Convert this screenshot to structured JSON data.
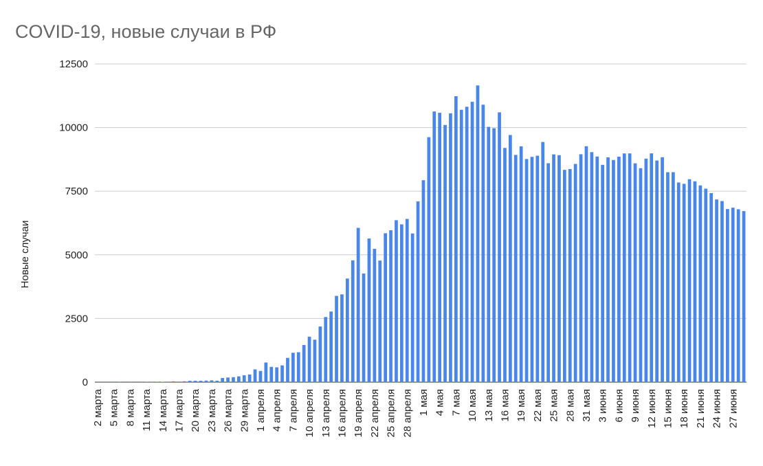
{
  "chart_data": {
    "type": "bar",
    "title": "COVID-19, новые случаи в РФ",
    "ylabel": "Новые случаи",
    "categories": [
      "2 марта",
      null,
      null,
      "5 марта",
      null,
      null,
      "8 марта",
      null,
      null,
      "11 марта",
      null,
      null,
      "14 марта",
      null,
      null,
      "17 марта",
      null,
      null,
      "20 марта",
      null,
      null,
      "23 марта",
      null,
      null,
      "26 марта",
      null,
      null,
      "29 марта",
      null,
      null,
      "1 апреля",
      null,
      null,
      "4 апреля",
      null,
      null,
      "7 апреля",
      null,
      null,
      "10 апреля",
      null,
      null,
      "13 апреля",
      null,
      null,
      "16 апреля",
      null,
      null,
      "19 апреля",
      null,
      null,
      "22 апреля",
      null,
      null,
      "25 апреля",
      null,
      null,
      "28 апреля",
      null,
      null,
      "1 мая",
      null,
      null,
      "4 мая",
      null,
      null,
      "7 мая",
      null,
      null,
      "10 мая",
      null,
      null,
      "13 мая",
      null,
      null,
      "16 мая",
      null,
      null,
      "19 мая",
      null,
      null,
      "22 мая",
      null,
      null,
      "25 мая",
      null,
      null,
      "28 мая",
      null,
      null,
      "31 мая",
      null,
      null,
      "3 июня",
      null,
      null,
      "6 июня",
      null,
      null,
      "9 июня",
      null,
      null,
      "12 июня",
      null,
      null,
      "15 июня",
      null,
      null,
      "18 июня",
      null,
      null,
      "21 июня",
      null,
      null,
      "24 июня",
      null,
      null,
      "27 июня",
      null,
      null
    ],
    "values": [
      1,
      0,
      0,
      1,
      6,
      0,
      3,
      0,
      3,
      8,
      6,
      17,
      14,
      4,
      30,
      21,
      33,
      52,
      54,
      53,
      61,
      71,
      57,
      163,
      182,
      196,
      228,
      270,
      302,
      501,
      440,
      771,
      601,
      582,
      658,
      954,
      1154,
      1175,
      1459,
      1786,
      1667,
      2186,
      2558,
      2774,
      3388,
      3448,
      4070,
      4785,
      6060,
      4268,
      5642,
      5236,
      4774,
      5849,
      5966,
      6361,
      6198,
      6411,
      5841,
      7099,
      7933,
      9623,
      10633,
      10581,
      10102,
      10559,
      11231,
      10699,
      10817,
      11012,
      11656,
      10899,
      10028,
      9974,
      10598,
      9200,
      9709,
      8926,
      9263,
      8764,
      8849,
      8894,
      9434,
      8599,
      8946,
      8915,
      8338,
      8371,
      8572,
      8952,
      9268,
      9035,
      8863,
      8536,
      8831,
      8726,
      8855,
      8984,
      8985,
      8595,
      8404,
      8779,
      8987,
      8706,
      8835,
      8246,
      8248,
      7843,
      7790,
      7972,
      7889,
      7728,
      7600,
      7425,
      7176,
      7113,
      6800,
      6852,
      6791,
      6719
    ],
    "color": "#4a86e8",
    "ylim": [
      0,
      12500
    ],
    "yticks": [
      0,
      2500,
      5000,
      7500,
      10000,
      12500
    ],
    "grid": true
  }
}
